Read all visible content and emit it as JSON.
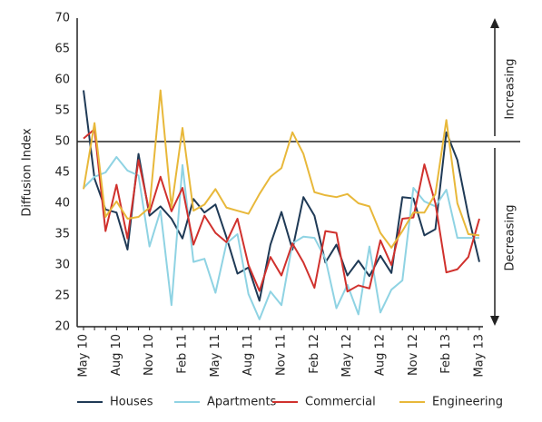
{
  "chart_data": {
    "type": "line",
    "y_label": "Diffusion Index",
    "categories": [
      "May 10",
      null,
      null,
      "Aug 10",
      null,
      null,
      "Nov 10",
      null,
      null,
      "Feb 11",
      null,
      null,
      "May 11",
      null,
      null,
      "Aug 11",
      null,
      null,
      "Nov 11",
      null,
      null,
      "Feb 12",
      null,
      null,
      "May 12",
      null,
      null,
      "Aug 12",
      null,
      null,
      "Nov 12",
      null,
      null,
      "Feb 13",
      null,
      null,
      "May 13"
    ],
    "series": [
      {
        "name": "Houses",
        "color": "#1f3a56",
        "values": [
          58.3,
          44,
          39,
          38.5,
          32.5,
          48,
          38,
          39.5,
          37.5,
          34.3,
          40.7,
          38.5,
          39.8,
          34.5,
          28.6,
          29.6,
          24.2,
          33.3,
          38.6,
          32.5,
          41,
          38,
          30.4,
          33.3,
          28.3,
          30.7,
          28.2,
          31.5,
          28.7,
          41,
          40.8,
          34.8,
          35.8,
          51.5,
          47,
          38,
          30.5
        ]
      },
      {
        "name": "Apartments",
        "color": "#8fd3e3",
        "values": [
          42.5,
          44.3,
          45,
          47.5,
          45.3,
          44.5,
          33,
          38.8,
          23.5,
          46.2,
          30.5,
          31,
          25.5,
          33.5,
          35,
          25.3,
          21.2,
          25.7,
          23.5,
          33.5,
          34.6,
          34.4,
          31,
          23,
          26.8,
          22,
          33,
          22.3,
          26,
          27.5,
          42.5,
          40.3,
          39.5,
          42.2,
          34.4,
          34.4,
          34.4
        ]
      },
      {
        "name": "Commercial",
        "color": "#d0312d",
        "values": [
          50.5,
          52,
          35.5,
          43,
          34.3,
          47,
          38.5,
          44.3,
          38.7,
          42.5,
          33.3,
          38,
          35.2,
          33.7,
          37.5,
          30,
          25.8,
          31.3,
          28.3,
          33.5,
          30.4,
          26.3,
          35.5,
          35.2,
          25.7,
          26.7,
          26.2,
          34,
          30,
          37.5,
          37.7,
          46.3,
          40,
          28.8,
          29.3,
          31.3,
          37.5
        ]
      },
      {
        "name": "Engineering",
        "color": "#e8b83a",
        "values": [
          42.3,
          53,
          37.8,
          40.3,
          37.5,
          37.8,
          39.3,
          58.3,
          39.3,
          52.2,
          38.8,
          39.8,
          42.3,
          39.3,
          38.8,
          38.3,
          41.5,
          44.3,
          45.7,
          51.5,
          48,
          41.8,
          41.3,
          41,
          41.5,
          40,
          39.5,
          35.2,
          32.8,
          35.5,
          38.5,
          38.5,
          41.5,
          53.5,
          40,
          35,
          34.8
        ]
      }
    ],
    "reference_line": 50,
    "annotations": [
      "Increasing",
      "Decreasing"
    ],
    "ylim": [
      20,
      70
    ],
    "yticks": [
      20,
      25,
      30,
      35,
      40,
      45,
      50,
      55,
      60,
      65,
      70
    ],
    "grid": false
  }
}
